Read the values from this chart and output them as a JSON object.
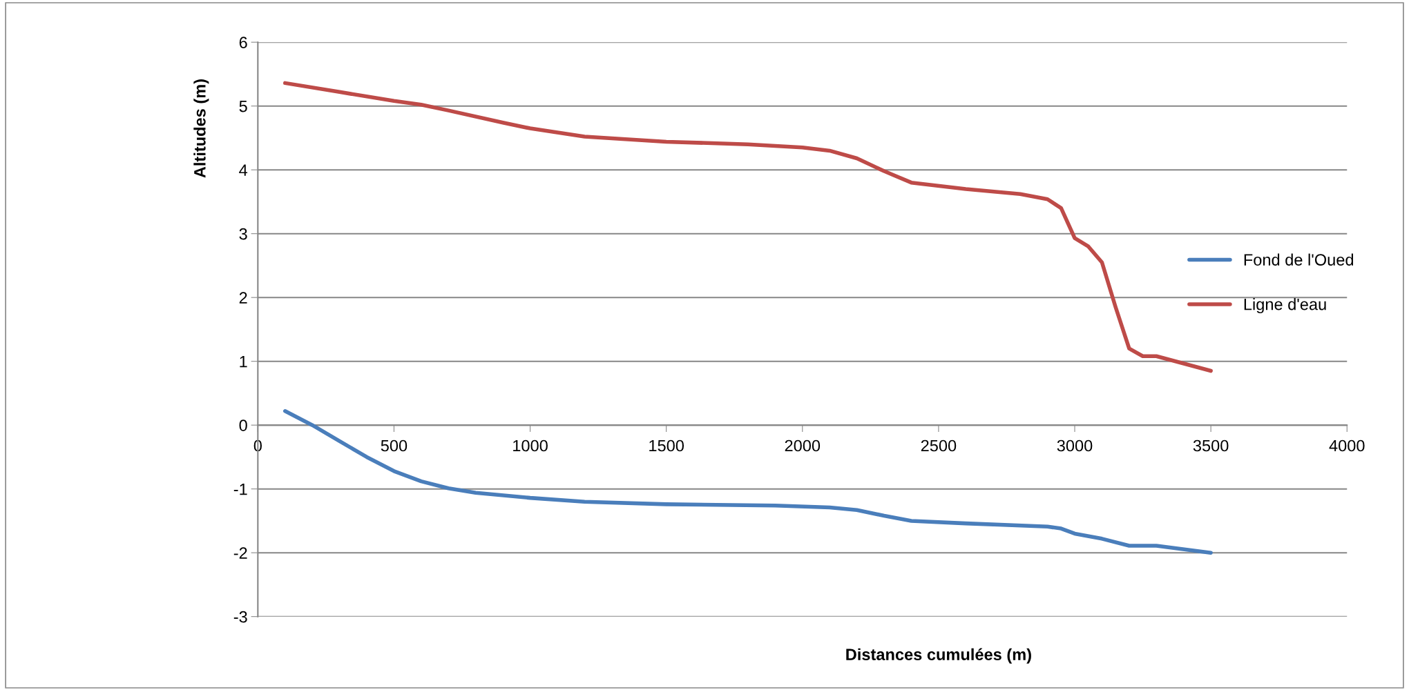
{
  "chart_data": {
    "type": "line",
    "xlabel": "Distances cumulées (m)",
    "ylabel": "Altitudes (m)",
    "xlim": [
      0,
      4000
    ],
    "xticks": [
      0,
      500,
      1000,
      1500,
      2000,
      2500,
      3000,
      3500,
      4000
    ],
    "ylim": [
      -3,
      6
    ],
    "yticks": [
      -3,
      -2,
      -1,
      0,
      1,
      2,
      3,
      4,
      5,
      6
    ],
    "grid": "y",
    "legend": "right",
    "marker": "none",
    "line_style": "solid",
    "series": [
      {
        "name": "Fond de l'Oued",
        "color": "#4a7ebb",
        "x": [
          100,
          200,
          300,
          400,
          500,
          600,
          700,
          800,
          1000,
          1200,
          1500,
          1900,
          2100,
          2200,
          2300,
          2400,
          2600,
          2900,
          2950,
          3000,
          3100,
          3200,
          3300,
          3500
        ],
        "values": [
          0.22,
          0.0,
          -0.25,
          -0.5,
          -0.72,
          -0.88,
          -0.99,
          -1.06,
          -1.14,
          -1.2,
          -1.24,
          -1.26,
          -1.29,
          -1.33,
          -1.42,
          -1.5,
          -1.54,
          -1.59,
          -1.62,
          -1.7,
          -1.78,
          -1.89,
          -1.89,
          -2.0
        ]
      },
      {
        "name": "Ligne d'eau",
        "color": "#be4b48",
        "x": [
          100,
          300,
          500,
          600,
          700,
          900,
          1000,
          1200,
          1500,
          1800,
          2000,
          2100,
          2200,
          2300,
          2400,
          2600,
          2800,
          2900,
          2950,
          3000,
          3050,
          3100,
          3150,
          3200,
          3250,
          3300,
          3500
        ],
        "values": [
          5.36,
          5.22,
          5.08,
          5.02,
          4.93,
          4.74,
          4.65,
          4.52,
          4.44,
          4.4,
          4.35,
          4.3,
          4.18,
          3.98,
          3.8,
          3.7,
          3.62,
          3.54,
          3.4,
          2.93,
          2.8,
          2.55,
          1.85,
          1.2,
          1.08,
          1.08,
          0.85
        ]
      }
    ]
  }
}
